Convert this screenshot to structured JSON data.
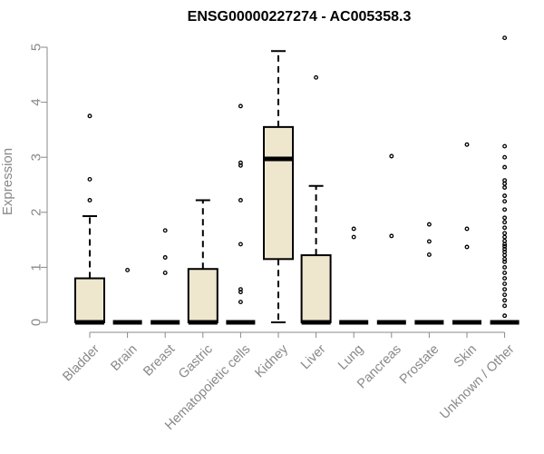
{
  "chart_data": {
    "type": "boxplot",
    "title": "ENSG00000227274 - AC005358.3",
    "xlabel": "",
    "ylabel": "Expression",
    "ylim": [
      0,
      5
    ],
    "yticks": [
      "0",
      "1",
      "2",
      "3",
      "4",
      "5"
    ],
    "grid": false,
    "box_color": "#EEE7CE",
    "categories": [
      "Bladder",
      "Brain",
      "Breast",
      "Gastric",
      "Hematopoietic cells",
      "Kidney",
      "Liver",
      "Lung",
      "Pancreas",
      "Prostate",
      "Skin",
      "Unknown / Other"
    ],
    "boxes": [
      {
        "q1": 0,
        "median": 0,
        "q3": 0.8,
        "whisker_low": 0,
        "whisker_high": 1.93,
        "outliers": [
          2.22,
          2.6,
          3.75
        ]
      },
      {
        "q1": 0,
        "median": 0,
        "q3": 0,
        "whisker_low": 0,
        "whisker_high": 0,
        "outliers": [
          0.95
        ]
      },
      {
        "q1": 0,
        "median": 0,
        "q3": 0,
        "whisker_low": 0,
        "whisker_high": 0,
        "outliers": [
          0.9,
          1.18,
          1.67
        ]
      },
      {
        "q1": 0,
        "median": 0,
        "q3": 0.97,
        "whisker_low": 0,
        "whisker_high": 2.22,
        "outliers": []
      },
      {
        "q1": 0,
        "median": 0,
        "q3": 0,
        "whisker_low": 0,
        "whisker_high": 0,
        "outliers": [
          0.37,
          0.55,
          0.6,
          1.42,
          2.22,
          2.85,
          2.9,
          3.93
        ]
      },
      {
        "q1": 1.15,
        "median": 2.97,
        "q3": 3.55,
        "whisker_low": 0,
        "whisker_high": 4.93,
        "outliers": []
      },
      {
        "q1": 0,
        "median": 0,
        "q3": 1.22,
        "whisker_low": 0,
        "whisker_high": 2.48,
        "outliers": [
          4.45
        ]
      },
      {
        "q1": 0,
        "median": 0,
        "q3": 0,
        "whisker_low": 0,
        "whisker_high": 0,
        "outliers": [
          1.55,
          1.7
        ]
      },
      {
        "q1": 0,
        "median": 0,
        "q3": 0,
        "whisker_low": 0,
        "whisker_high": 0,
        "outliers": [
          1.57,
          3.02
        ]
      },
      {
        "q1": 0,
        "median": 0,
        "q3": 0,
        "whisker_low": 0,
        "whisker_high": 0,
        "outliers": [
          1.23,
          1.47,
          1.78
        ]
      },
      {
        "q1": 0,
        "median": 0,
        "q3": 0,
        "whisker_low": 0,
        "whisker_high": 0,
        "outliers": [
          1.37,
          1.7,
          3.23
        ]
      },
      {
        "q1": 0,
        "median": 0,
        "q3": 0,
        "whisker_low": 0,
        "whisker_high": 0,
        "outliers": [
          0.12,
          0.3,
          0.4,
          0.5,
          0.6,
          0.7,
          0.8,
          0.9,
          1.0,
          1.1,
          1.15,
          1.22,
          1.28,
          1.33,
          1.38,
          1.42,
          1.48,
          1.55,
          1.62,
          1.72,
          1.82,
          1.9,
          2.05,
          2.2,
          2.3,
          2.45,
          2.52,
          2.58,
          2.82,
          3.0,
          3.2,
          5.17
        ]
      }
    ]
  }
}
